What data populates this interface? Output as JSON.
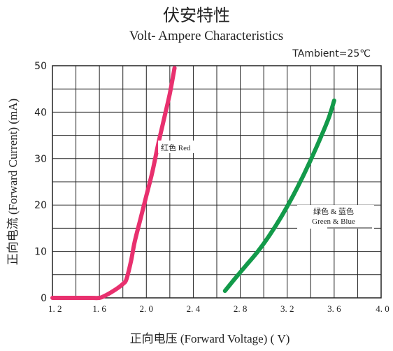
{
  "chart_data": {
    "type": "line",
    "title": "伏安特性",
    "subtitle": "Volt- Ampere  Characteristics",
    "condition": "TAmbient=25℃",
    "xlabel": "正向电压 (Forward  Voltage) ( V)",
    "ylabel": "正向电流 (Forward  Current) (mA)",
    "xlim": [
      1.2,
      4.0
    ],
    "ylim": [
      0,
      50
    ],
    "x_ticks": [
      1.2,
      1.6,
      2.0,
      2.4,
      2.8,
      3.2,
      3.6,
      4.0
    ],
    "x_tick_labels": [
      "1. 2",
      "1. 6",
      "2. 0",
      "2. 4",
      "2. 8",
      "3. 2",
      "3. 6",
      "4. 0"
    ],
    "y_ticks": [
      0,
      10,
      20,
      30,
      40,
      50
    ],
    "y_tick_labels": [
      "0",
      "10",
      "20",
      "30",
      "40",
      "50"
    ],
    "grid": true,
    "series": [
      {
        "name": "红色 Red",
        "color": "#e8306e",
        "x": [
          1.2,
          1.5,
          1.6,
          1.65,
          1.7,
          1.75,
          1.8,
          1.83,
          1.87,
          1.9,
          1.95,
          2.0,
          2.05,
          2.1,
          2.15,
          2.2,
          2.24
        ],
        "y": [
          0,
          0,
          0,
          0.5,
          1.2,
          2.0,
          3.0,
          4.0,
          8.0,
          12.0,
          17.0,
          22.0,
          27.0,
          33.0,
          38.5,
          44.0,
          49.5
        ]
      },
      {
        "name": "绿色 & 蓝色 Green & Blue",
        "color": "#139a4a",
        "x": [
          2.67,
          2.75,
          2.85,
          2.95,
          3.05,
          3.15,
          3.25,
          3.35,
          3.45,
          3.55,
          3.6
        ],
        "y": [
          1.5,
          4.0,
          7.0,
          10.0,
          13.5,
          17.5,
          22.0,
          27.0,
          32.5,
          38.5,
          42.5
        ]
      }
    ],
    "annotations": [
      {
        "text": "红色 Red",
        "series": 0
      },
      {
        "text": "绿色 & 蓝色",
        "text2": "Green & Blue",
        "series": 1
      }
    ]
  }
}
